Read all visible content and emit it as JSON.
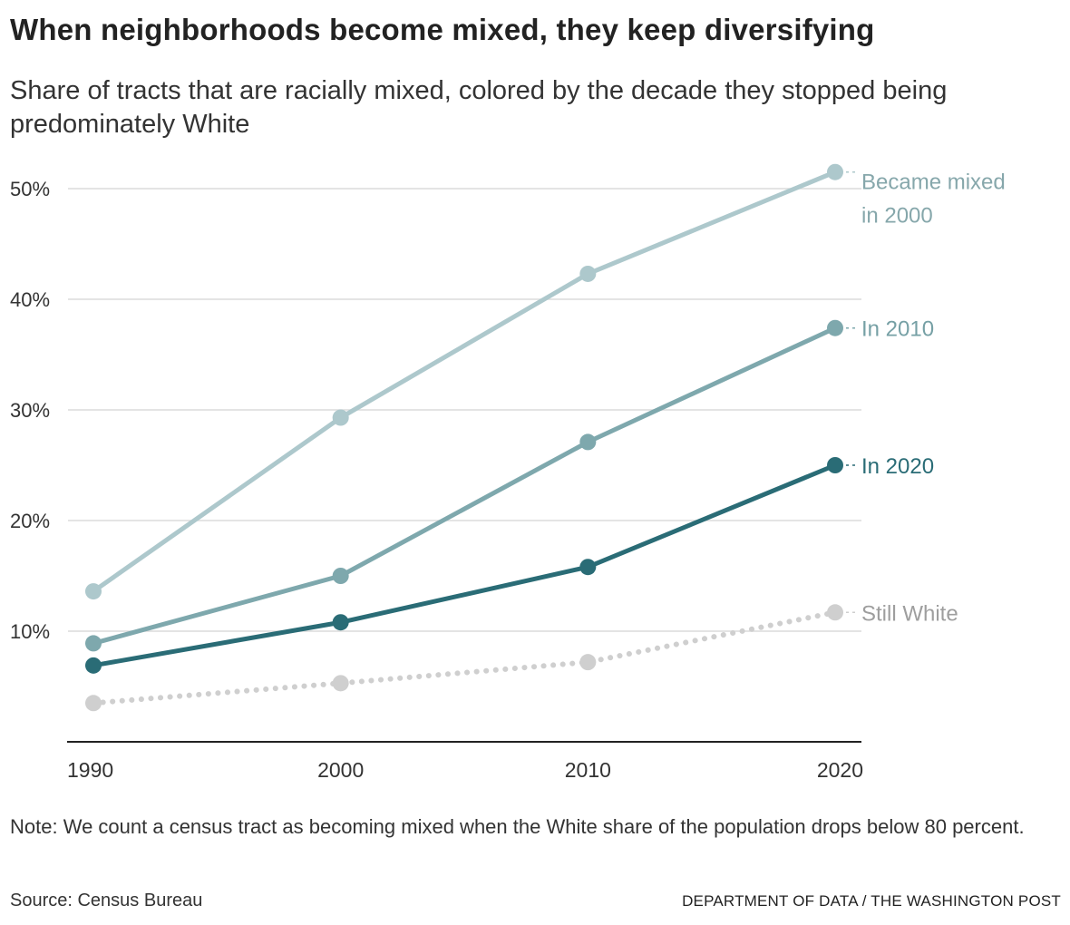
{
  "header": {
    "title": "When neighborhoods become mixed, they keep diversifying",
    "subtitle": "Share of tracts that are racially mixed, colored by the decade they stopped being predominately White"
  },
  "footer": {
    "note": "Note: We count a census tract as becoming mixed when the White share of the population drops below 80 percent.",
    "source": "Source: Census Bureau",
    "credit": "DEPARTMENT OF DATA / THE WASHINGTON POST"
  },
  "chart_data": {
    "type": "line",
    "title": "When neighborhoods become mixed, they keep diversifying",
    "subtitle": "Share of tracts that are racially mixed, colored by the decade they stopped being predominately White",
    "x": [
      1990,
      2000,
      2010,
      2020
    ],
    "x_tick_labels": [
      "1990",
      "2000",
      "2010",
      "2020"
    ],
    "y_ticks": [
      10,
      20,
      30,
      40,
      50
    ],
    "y_tick_labels": [
      "10%",
      "20%",
      "30%",
      "40%",
      "50%"
    ],
    "ylim": [
      0,
      52
    ],
    "grid": true,
    "legend": "direct labels at right end of lines",
    "series": [
      {
        "name": "Became mixed in 2000",
        "label_lines": [
          "Became mixed",
          "in 2000"
        ],
        "values": [
          13.6,
          29.3,
          42.3,
          51.5
        ],
        "color": "#adc8cc",
        "label_color": "#86a7ab",
        "dashed": false
      },
      {
        "name": "In 2010",
        "label_lines": [
          "In 2010"
        ],
        "values": [
          8.9,
          15.0,
          27.1,
          37.4
        ],
        "color": "#7ea8ad",
        "label_color": "#76a0a5",
        "dashed": false
      },
      {
        "name": "In 2020",
        "label_lines": [
          "In 2020"
        ],
        "values": [
          6.9,
          10.8,
          15.8,
          25.0
        ],
        "color": "#2a6c76",
        "label_color": "#2a6c76",
        "dashed": false
      },
      {
        "name": "Still White",
        "label_lines": [
          "Still White"
        ],
        "values": [
          3.5,
          5.3,
          7.2,
          11.7
        ],
        "color": "#cfcfcf",
        "label_color": "#9e9e9e",
        "dashed": true
      }
    ]
  }
}
